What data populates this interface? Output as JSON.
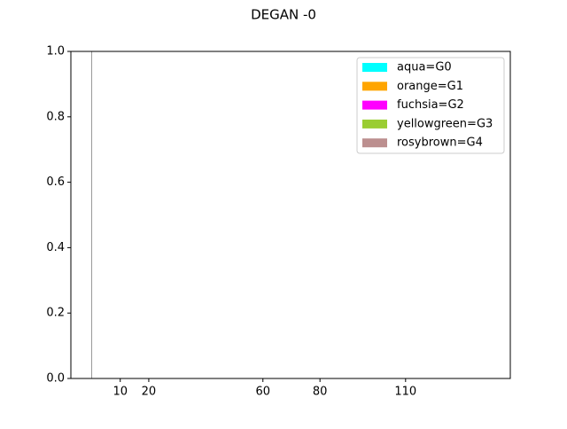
{
  "chart_data": {
    "type": "bar",
    "title": "DEGAN -0",
    "series": [
      {
        "name": "aqua=G0",
        "color": "#00ffff"
      },
      {
        "name": "orange=G1",
        "color": "#ffa500"
      },
      {
        "name": "fuchsia=G2",
        "color": "#ff00ff"
      },
      {
        "name": "yellowgreen=G3",
        "color": "#9acd32"
      },
      {
        "name": "rosybrown=G4",
        "color": "#bc8f8f"
      }
    ],
    "vline": 0,
    "vline_color": "#999999",
    "xlim": [
      -7.3,
      146.7
    ],
    "xticks": [
      10,
      20,
      60,
      80,
      110
    ],
    "ylim": [
      0,
      1
    ],
    "yticks": [
      {
        "value": 0,
        "label": "0.0"
      },
      {
        "value": 0.2,
        "label": "0.2"
      },
      {
        "value": 0.4,
        "label": "0.4"
      },
      {
        "value": 0.6,
        "label": "0.6"
      },
      {
        "value": 0.8,
        "label": "0.8"
      },
      {
        "value": 1,
        "label": "1.0"
      }
    ],
    "legend": "upper right"
  }
}
